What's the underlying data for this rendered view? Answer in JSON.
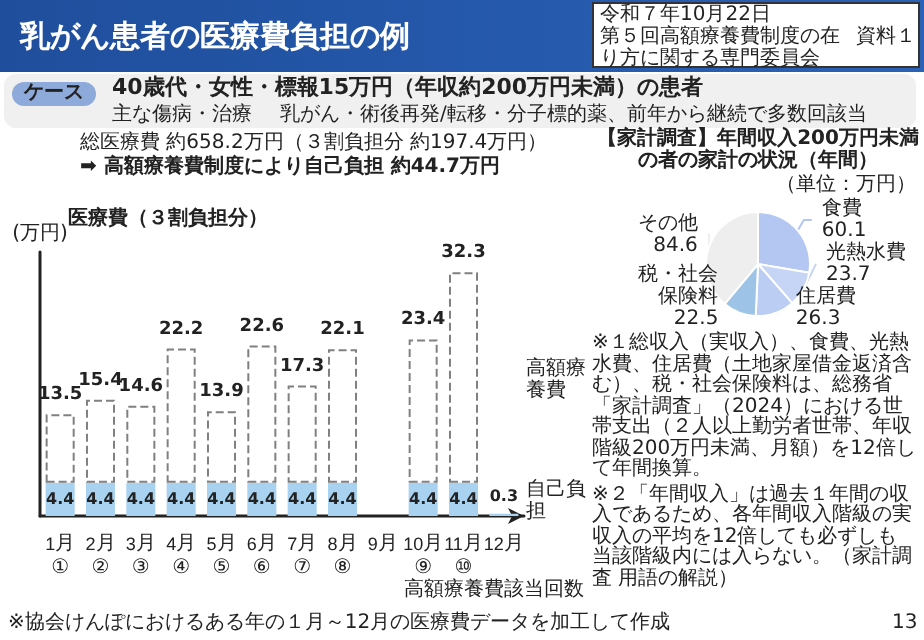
{
  "chart_data": [
    {
      "type": "bar",
      "title": "乳がん患者の医療費負担の例",
      "ylabel": "(万円)",
      "xlabel": "高額療養費該当回数",
      "annotations": [
        "令和７年10月22日",
        "第５回高額療養費制度の在り方に関する専門委員会",
        "資料１",
        "ケース",
        "40歳代・女性・標報15万円（年収約200万円未満）の患者",
        "主な傷病・治療",
        "乳がん・術後再発/転移・分子標的薬、前年から継続で多数回該当",
        "総医療費 約658.2万円（３割負担分 約197.4万円）",
        "➡ 高額療養費制度により自己負担 約44.7万円",
        "医療費（３割負担分）",
        "※協会けんぽにおけるある年の１月～12月の医療費データを加工して作成",
        "13"
      ],
      "categories": [
        "1月\n①",
        "2月\n②",
        "3月\n③",
        "4月\n④",
        "5月\n⑤",
        "6月\n⑥",
        "7月\n⑦",
        "8月\n⑧",
        "9月",
        "10月\n⑨",
        "11月\n⑩",
        "12月"
      ],
      "stacked": true,
      "series": [
        {
          "name": "自己負担",
          "color": "#a9d2f0",
          "values": [
            4.4,
            4.4,
            4.4,
            4.4,
            4.4,
            4.4,
            4.4,
            4.4,
            null,
            4.4,
            4.4,
            0.3
          ],
          "value_labels": [
            "4.4",
            "4.4",
            "4.4",
            "4.4",
            "4.4",
            "4.4",
            "4.4",
            "4.4",
            null,
            "4.4",
            "4.4",
            "0.3"
          ]
        },
        {
          "name": "高額療養費",
          "color": "#808080",
          "line_style": "dashed",
          "values": [
            9.1,
            11.0,
            10.2,
            17.8,
            9.5,
            18.2,
            12.9,
            17.7,
            null,
            19.0,
            27.9,
            null
          ]
        }
      ],
      "totals": [
        "13.5",
        "15.4",
        "14.6",
        "22.2",
        "13.9",
        "22.6",
        "17.3",
        "22.1",
        null,
        "23.4",
        "32.3",
        null
      ]
    },
    {
      "type": "pie",
      "title": "【家計調査】年間収入200万円未満の者の家計の状況（年間）",
      "subtitle": "（単位：万円）",
      "categories": [
        "食費",
        "光熱水費",
        "住居費",
        "税・社会保険料",
        "その他"
      ],
      "values": [
        60.1,
        23.7,
        26.3,
        22.5,
        84.6
      ],
      "colors": [
        "#b4c6f2",
        "#c6d4f5",
        "#bccdf3",
        "#9dc3e6",
        "#eeeeee"
      ],
      "data_labels": true,
      "annotations": [
        "※１総収入（実収入）、食費、光熱水費、住居費（土地家屋借金返済含む）、税・社会保険料は、総務省「家計調査」（2024）における世帯支出（２人以上勤労者世帯、年収階級200万円未満、月額）を12倍して年間換算。",
        "※２「年間収入」は過去１年間の収入であるため、各年間収入階級の実収入の平均を12倍しても必ずしも当該階級内には入らない。（家計調査 用語の解説）"
      ]
    }
  ]
}
